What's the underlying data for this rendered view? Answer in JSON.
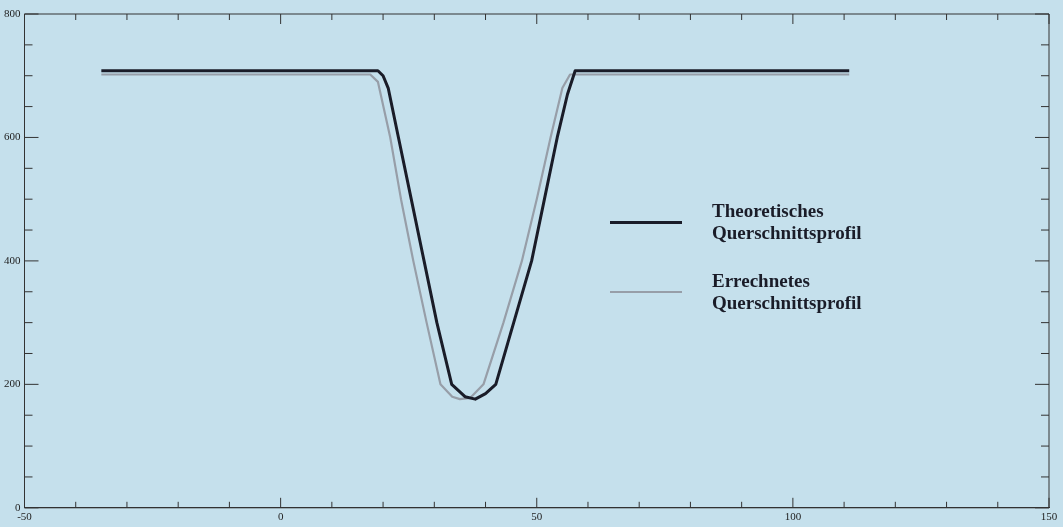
{
  "chart_data": {
    "type": "line",
    "xlim": [
      -50,
      150
    ],
    "ylim": [
      0,
      800
    ],
    "xticks": [
      -50,
      {
        "value": -40,
        "label": null
      },
      {
        "value": -30,
        "label": null
      },
      {
        "value": -20,
        "label": null
      },
      {
        "value": -10,
        "label": null
      },
      0,
      {
        "value": 10,
        "label": null
      },
      {
        "value": 20,
        "label": null
      },
      {
        "value": 30,
        "label": null
      },
      {
        "value": 40,
        "label": null
      },
      50,
      {
        "value": 60,
        "label": null
      },
      {
        "value": 70,
        "label": null
      },
      {
        "value": 80,
        "label": null
      },
      {
        "value": 90,
        "label": null
      },
      100,
      {
        "value": 110,
        "label": null
      },
      {
        "value": 120,
        "label": null
      },
      {
        "value": 130,
        "label": null
      },
      {
        "value": 140,
        "label": null
      },
      150
    ],
    "yticks": [
      0,
      {
        "value": 50,
        "label": null
      },
      {
        "value": 100,
        "label": null
      },
      {
        "value": 150,
        "label": null
      },
      200,
      {
        "value": 250,
        "label": null
      },
      {
        "value": 300,
        "label": null
      },
      {
        "value": 350,
        "label": null
      },
      400,
      {
        "value": 450,
        "label": null
      },
      {
        "value": 500,
        "label": null
      },
      {
        "value": 550,
        "label": null
      },
      600,
      {
        "value": 650,
        "label": null
      },
      {
        "value": 700,
        "label": null
      },
      {
        "value": 750,
        "label": null
      },
      800
    ],
    "grid": false,
    "legend": "right",
    "marker": "none",
    "line_style": "solid",
    "series": [
      {
        "name": "Theoretisches Querschnittsprofil",
        "color": "#1a1c28",
        "x": [
          -35,
          19,
          20,
          21,
          23,
          25.5,
          28,
          30.5,
          33.4,
          36,
          38,
          40,
          42,
          45.5,
          49,
          51.5,
          54,
          56,
          57.5,
          111
        ],
        "values": [
          708,
          708,
          700,
          680,
          600,
          500,
          400,
          300,
          200,
          180,
          176,
          185,
          200,
          300,
          400,
          500,
          600,
          670,
          708,
          708
        ]
      },
      {
        "name": "Errechnetes Querschnittsprofil",
        "color": "#979ea8",
        "x": [
          -35,
          17.5,
          19,
          21.4,
          23.5,
          25.9,
          28.5,
          31.2,
          33.5,
          35,
          37,
          39.6,
          43.5,
          47.1,
          50,
          52.7,
          55,
          56.5,
          111
        ],
        "values": [
          702,
          702,
          690,
          600,
          500,
          400,
          300,
          200,
          180,
          176,
          178,
          200,
          300,
          400,
          500,
          600,
          680,
          702,
          702
        ]
      }
    ]
  }
}
